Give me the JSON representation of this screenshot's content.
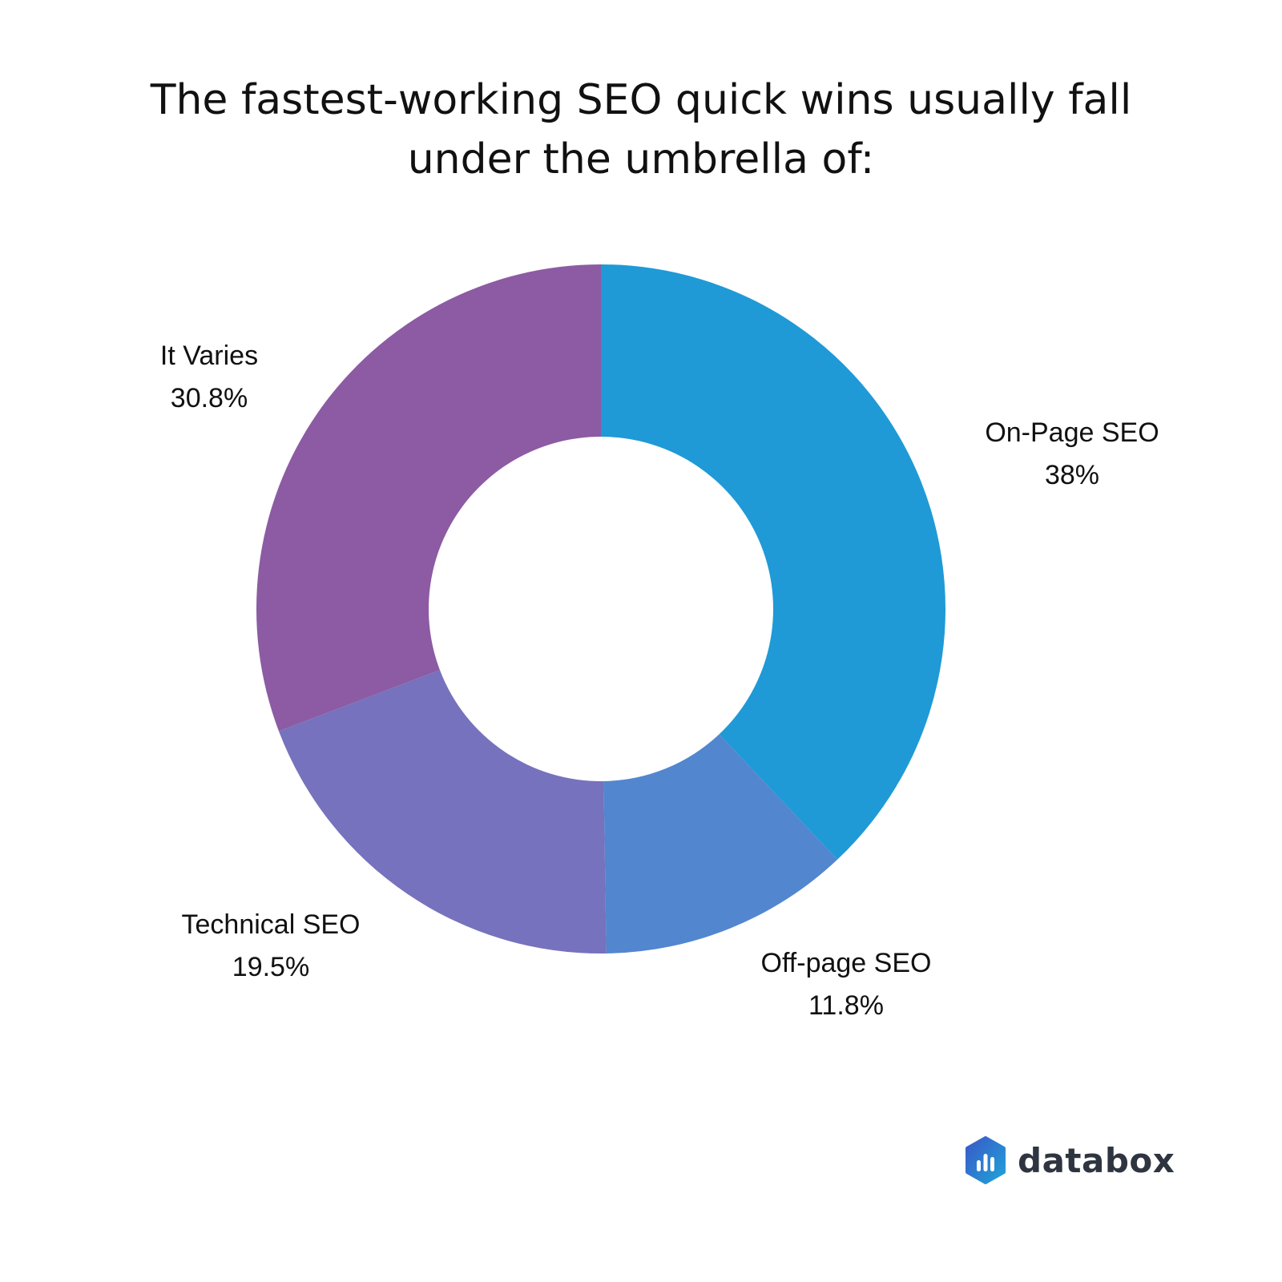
{
  "chart_data": {
    "type": "pie",
    "style": "donut",
    "title_lines": [
      "The fastest-working SEO quick wins usually fall",
      "under the umbrella of:"
    ],
    "slices": [
      {
        "label": "On-Page SEO",
        "value": 38,
        "value_label": "38%",
        "color": "#1f9ad6"
      },
      {
        "label": "Off-page SEO",
        "value": 11.8,
        "value_label": "11.8%",
        "color": "#5286cf"
      },
      {
        "label": "Technical SEO",
        "value": 19.5,
        "value_label": "19.5%",
        "color": "#7672bd"
      },
      {
        "label": "It Varies",
        "value": 30.8,
        "value_label": "30.8%",
        "color": "#8c5ba3"
      }
    ],
    "legend": "none"
  },
  "branding": {
    "logo_text": "databox",
    "logo_icon": "databox-logo-icon"
  }
}
